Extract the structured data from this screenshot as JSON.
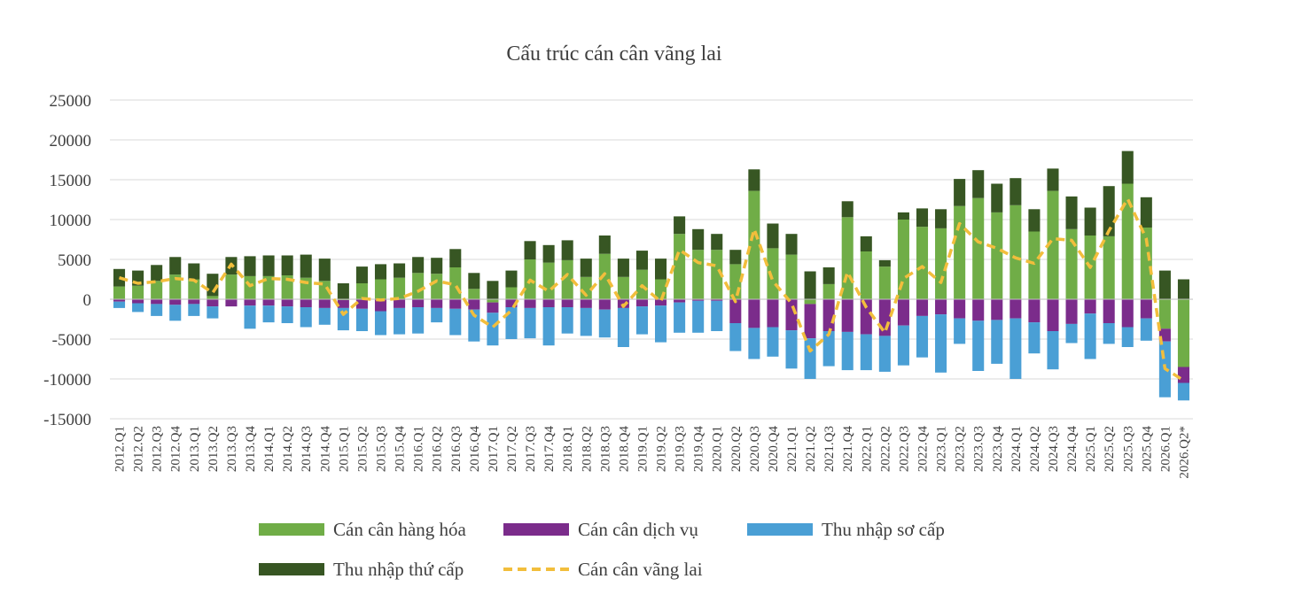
{
  "chart_data": {
    "type": "bar",
    "stacked": true,
    "title": "Cấu trúc cán cân vãng lai",
    "xlabel": "",
    "ylabel": "",
    "ylim": [
      -15000,
      25000
    ],
    "yticks": [
      25000,
      20000,
      15000,
      10000,
      5000,
      0,
      -5000,
      -10000,
      -15000
    ],
    "ytick_labels": [
      "25000",
      "20000",
      "15000",
      "10000",
      "5000",
      "0",
      "-5000",
      "-10000",
      "-15000"
    ],
    "grid": true,
    "legend_position": "bottom",
    "categories": [
      "2012.Q1",
      "2012.Q2",
      "2012.Q3",
      "2012.Q4",
      "2013.Q1",
      "2013.Q2",
      "2013.Q3",
      "2013.Q4",
      "2014.Q1",
      "2014.Q2",
      "2014.Q3",
      "2014.Q4",
      "2015.Q1",
      "2015.Q2",
      "2015.Q3",
      "2015.Q4",
      "2016.Q1",
      "2016.Q2",
      "2016.Q3",
      "2016.Q4",
      "2017.Q1",
      "2017.Q2",
      "2017.Q3",
      "2017.Q4",
      "2018.Q1",
      "2018.Q2",
      "2018.Q3",
      "2018.Q4",
      "2019.Q1",
      "2019.Q2",
      "2019.Q3",
      "2019.Q4",
      "2020.Q1",
      "2020.Q2",
      "2020.Q3",
      "2020.Q4",
      "2021.Q1",
      "2021.Q2",
      "2021.Q3",
      "2021.Q4",
      "2022.Q1",
      "2022.Q2",
      "2022.Q3",
      "2022.Q4",
      "2023.Q1",
      "2023.Q2",
      "2023.Q3",
      "2023.Q4",
      "2024.Q1",
      "2024.Q2",
      "2024.Q3",
      "2024.Q4",
      "2025.Q1",
      "2025.Q2",
      "2025.Q3",
      "2025.Q4",
      "2026.Q1",
      "2026.Q2*"
    ],
    "series": [
      {
        "name": "Cán cân hàng hóa",
        "type": "bar",
        "color": "#70AD47",
        "values": [
          1600,
          1700,
          2300,
          3100,
          2500,
          400,
          3100,
          2900,
          2900,
          3000,
          2700,
          2300,
          -100,
          2000,
          2500,
          2700,
          3300,
          3200,
          4000,
          1300,
          -400,
          1500,
          5000,
          4600,
          4900,
          2800,
          5700,
          2800,
          3700,
          2500,
          8200,
          6200,
          6200,
          4400,
          13600,
          6400,
          5600,
          -600,
          1900,
          10300,
          6000,
          4100,
          10000,
          9100,
          8900,
          11700,
          12700,
          10900,
          11800,
          8500,
          13600,
          8800,
          8000,
          7900,
          14500,
          9000,
          -3700,
          -8500
        ]
      },
      {
        "name": "Cán cân dịch vụ",
        "type": "bar",
        "color": "#7B2C8B",
        "values": [
          -300,
          -500,
          -600,
          -700,
          -600,
          -900,
          -900,
          -800,
          -800,
          -900,
          -1000,
          -1100,
          -1000,
          -1200,
          -1500,
          -1100,
          -1000,
          -1100,
          -1200,
          -1300,
          -1300,
          -1000,
          -1100,
          -1000,
          -1000,
          -1100,
          -1300,
          -1100,
          -900,
          -800,
          -400,
          -200,
          -200,
          -3000,
          -3600,
          -3500,
          -3900,
          -4300,
          -4000,
          -4100,
          -4400,
          -4600,
          -3300,
          -2100,
          -1900,
          -2400,
          -2700,
          -2600,
          -2400,
          -2900,
          -4000,
          -3100,
          -1800,
          -3000,
          -3500,
          -2400,
          -1600,
          -2000
        ]
      },
      {
        "name": "Thu nhập sơ cấp",
        "type": "bar",
        "color": "#4A9FD5",
        "values": [
          -800,
          -1100,
          -1500,
          -2000,
          -1500,
          -1500,
          0,
          -2900,
          -2100,
          -2100,
          -2500,
          -2100,
          -2800,
          -2800,
          -3000,
          -3300,
          -3300,
          -1800,
          -3300,
          -4000,
          -4100,
          -4000,
          -3800,
          -4800,
          -3300,
          -3500,
          -3500,
          -4900,
          -3500,
          -4600,
          -3800,
          -4000,
          -3800,
          -3500,
          -3900,
          -3700,
          -4800,
          -5100,
          -4400,
          -4800,
          -4500,
          -4500,
          -5000,
          -5200,
          -7300,
          -3200,
          -6300,
          -5500,
          -7600,
          -3900,
          -4800,
          -2400,
          -5700,
          -2600,
          -2500,
          -2800,
          -7000,
          -2200
        ]
      },
      {
        "name": "Thu nhập thứ cấp",
        "type": "bar",
        "color": "#375623",
        "values": [
          2200,
          1900,
          2000,
          2200,
          2000,
          2800,
          2200,
          2500,
          2600,
          2500,
          2900,
          2800,
          2000,
          2100,
          1900,
          1800,
          2000,
          2000,
          2300,
          2000,
          2300,
          2100,
          2300,
          2200,
          2500,
          2300,
          2300,
          2300,
          2400,
          2600,
          2200,
          2600,
          2000,
          1800,
          2700,
          3100,
          2600,
          3500,
          2100,
          2000,
          1900,
          800,
          900,
          2300,
          2400,
          3400,
          3500,
          3600,
          3400,
          2800,
          2800,
          4100,
          3500,
          6300,
          4100,
          3800,
          3600,
          2500
        ]
      },
      {
        "name": "Cán cân vãng lai",
        "type": "line",
        "color": "#F2BE3C",
        "dash": true,
        "values": [
          2700,
          2000,
          2200,
          2600,
          2400,
          800,
          4400,
          1700,
          2600,
          2500,
          2100,
          1900,
          -1900,
          100,
          -100,
          100,
          1000,
          2300,
          1800,
          -2000,
          -3500,
          -1400,
          2400,
          1000,
          3100,
          500,
          3200,
          -900,
          1700,
          -300,
          6200,
          4600,
          4200,
          -300,
          8800,
          2300,
          -500,
          -6500,
          -4400,
          3400,
          -1000,
          -4200,
          2600,
          4100,
          2100,
          9500,
          7200,
          6400,
          5200,
          4500,
          7600,
          7400,
          4000,
          8600,
          12600,
          7600,
          -8700,
          -10200
        ]
      }
    ]
  }
}
